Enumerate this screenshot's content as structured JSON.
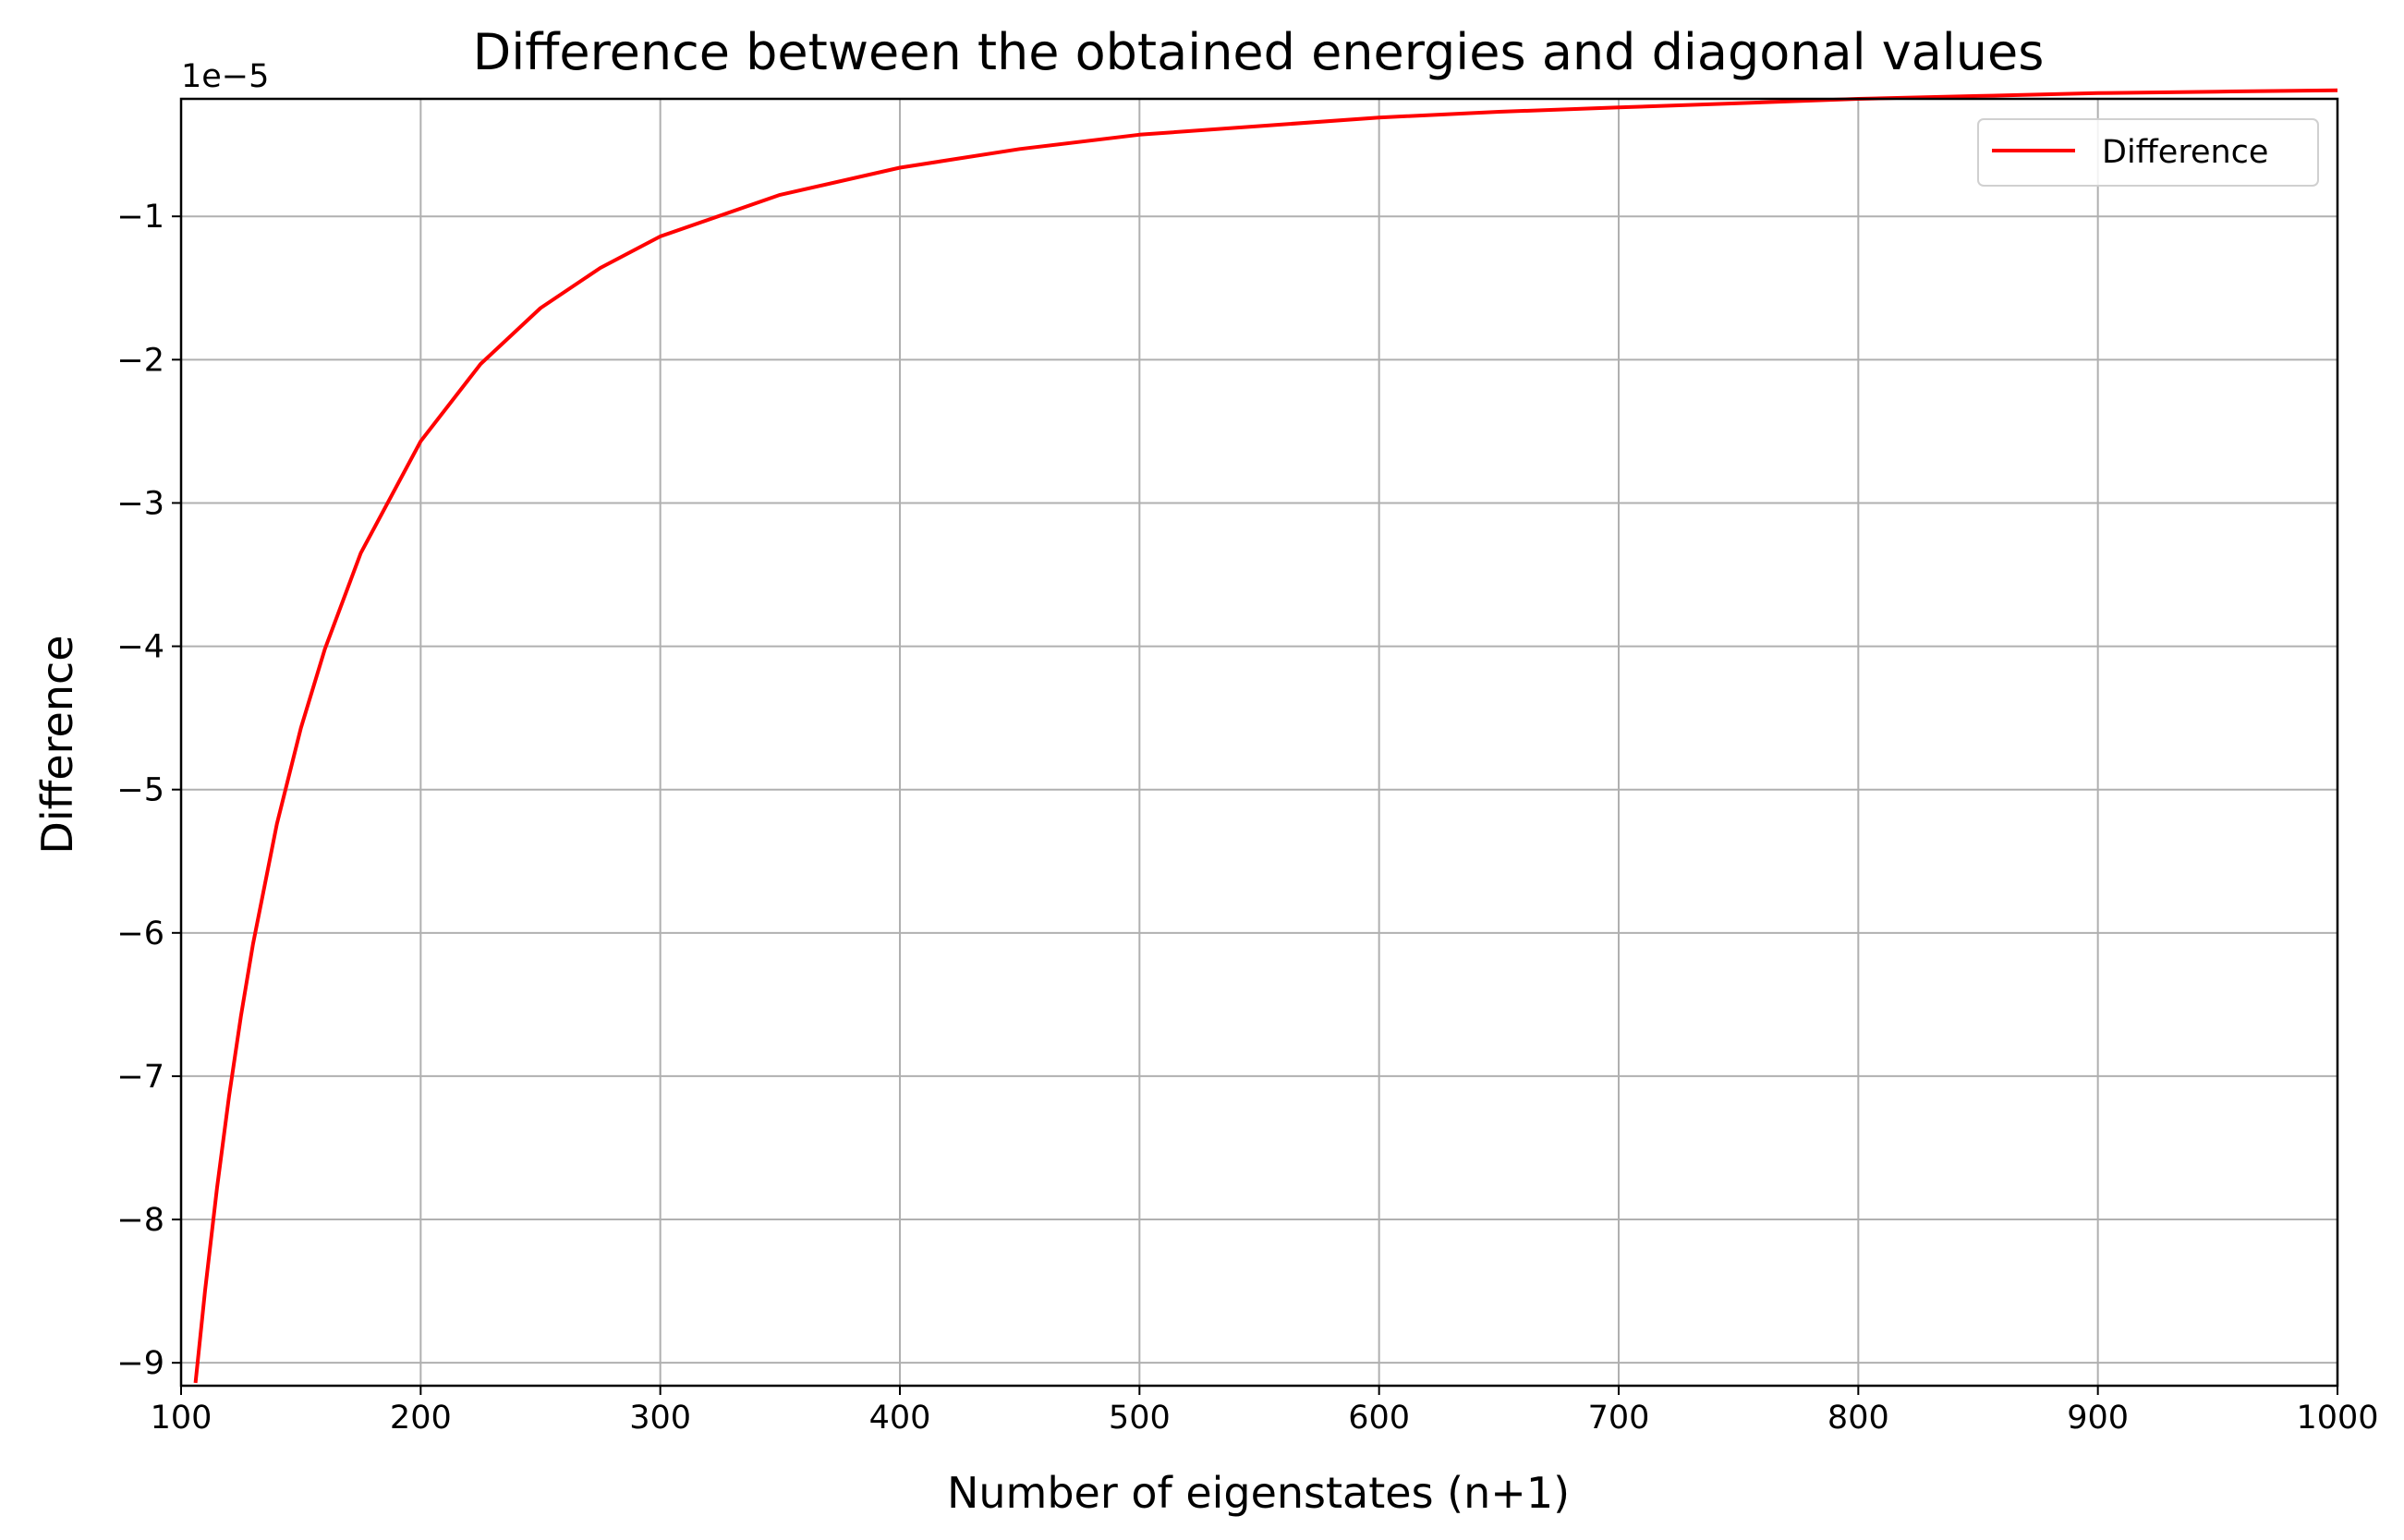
{
  "chart_data": {
    "type": "line",
    "title": "Difference between the obtained energies and diagonal values",
    "xlabel": "Number of eigenstates (n+1)",
    "ylabel": "Difference",
    "y_offset_label": "1e−5",
    "xlim": [
      100,
      1000
    ],
    "ylim": [
      -9.16,
      -0.18
    ],
    "y_scale_factor": 1e-05,
    "x_ticks": [
      100,
      200,
      300,
      400,
      500,
      600,
      700,
      800,
      900,
      1000
    ],
    "x_tick_labels": [
      "100",
      "200",
      "300",
      "400",
      "500",
      "600",
      "700",
      "800",
      "900",
      "1000"
    ],
    "y_ticks": [
      -9,
      -8,
      -7,
      -6,
      -5,
      -4,
      -3,
      -2,
      -1
    ],
    "y_tick_labels": [
      "−9",
      "−8",
      "−7",
      "−6",
      "−5",
      "−4",
      "−3",
      "−2",
      "−1"
    ],
    "grid": true,
    "legend_position": "upper right",
    "series": [
      {
        "name": "Difference",
        "color": "#ff0000",
        "x": [
          106,
          110,
          115,
          120,
          125,
          130,
          140,
          150,
          160,
          175,
          200,
          225,
          250,
          275,
          300,
          350,
          400,
          450,
          500,
          550,
          600,
          650,
          700,
          750,
          800,
          850,
          900,
          950,
          1000
        ],
        "y": [
          -9.14,
          -8.5,
          -7.78,
          -7.14,
          -6.58,
          -6.08,
          -5.24,
          -4.57,
          -4.02,
          -3.35,
          -2.57,
          -2.03,
          -1.64,
          -1.36,
          -1.14,
          -0.85,
          -0.66,
          -0.53,
          -0.43,
          -0.37,
          -0.31,
          -0.27,
          -0.24,
          -0.21,
          -0.18,
          -0.16,
          -0.14,
          -0.13,
          -0.12
        ]
      }
    ]
  }
}
